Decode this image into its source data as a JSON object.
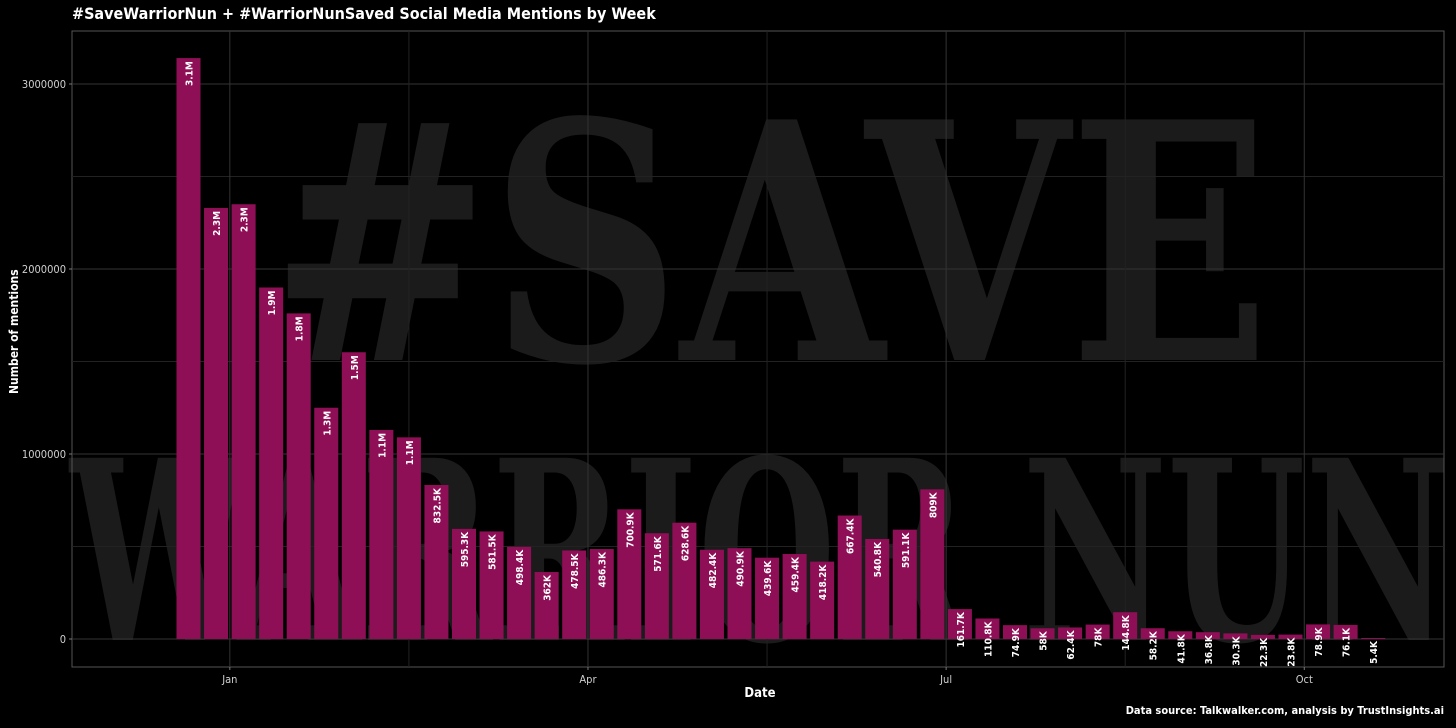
{
  "title": "#SaveWarriorNun + #WarriorNunSaved Social Media Mentions by Week",
  "source": "Data source: Talkwalker.com, analysis by TrustInsights.ai",
  "watermark": {
    "line1": "#SAVE",
    "line2": "WARRIOR NUN"
  },
  "colors": {
    "background": "#000000",
    "bar": "#8f0f57",
    "grid": "#333333",
    "text": "#ffffff",
    "watermark": "#1b1b1b"
  },
  "chart_data": {
    "type": "bar",
    "xlabel": "Date",
    "ylabel": "Number of mentions",
    "ylim": [
      -150000,
      3400000
    ],
    "yticks": [
      0,
      1000000,
      2000000,
      3000000
    ],
    "ytick_labels": [
      "0",
      "1000000",
      "2000000",
      "3000000"
    ],
    "xticks": [
      {
        "label": "Jan",
        "bar_position": 1.5
      },
      {
        "label": "Apr",
        "bar_position": 14.5
      },
      {
        "label": "Jul",
        "bar_position": 27.5
      },
      {
        "label": "Oct",
        "bar_position": 40.5
      }
    ],
    "grid": true,
    "values": [
      3140000,
      2330000,
      2350000,
      1900000,
      1760000,
      1250000,
      1550000,
      1130000,
      1090000,
      832500,
      595300,
      581500,
      498400,
      362000,
      478500,
      486300,
      700900,
      571600,
      628600,
      482400,
      490900,
      439600,
      459400,
      418200,
      667400,
      540800,
      591100,
      809000,
      161700,
      110800,
      74900,
      58000,
      62400,
      78000,
      144800,
      58200,
      41800,
      36800,
      30300,
      22300,
      23800,
      78900,
      76100,
      5400
    ],
    "labels": [
      "3.1M",
      "2.3M",
      "2.3M",
      "1.9M",
      "1.8M",
      "1.3M",
      "1.5M",
      "1.1M",
      "1.1M",
      "832.5K",
      "595.3K",
      "581.5K",
      "498.4K",
      "362K",
      "478.5K",
      "486.3K",
      "700.9K",
      "571.6K",
      "628.6K",
      "482.4K",
      "490.9K",
      "439.6K",
      "459.4K",
      "418.2K",
      "667.4K",
      "540.8K",
      "591.1K",
      "809K",
      "161.7K",
      "110.8K",
      "74.9K",
      "58K",
      "62.4K",
      "78K",
      "144.8K",
      "58.2K",
      "41.8K",
      "36.8K",
      "30.3K",
      "22.3K",
      "23.8K",
      "78.9K",
      "76.1K",
      "5.4K"
    ]
  }
}
